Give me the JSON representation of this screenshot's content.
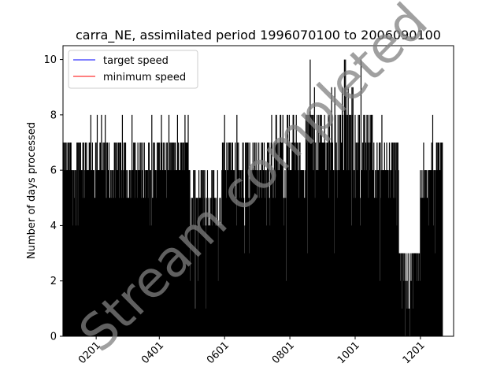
{
  "chart_data": {
    "type": "bar",
    "title": "carra_NE, assimilated period 1996070100 to 2006090100",
    "xlabel": "",
    "ylabel": "Number of days processed",
    "ylim": [
      0,
      10.5
    ],
    "y_ticks": [
      "0",
      "2",
      "4",
      "6",
      "8",
      "10"
    ],
    "x_ticks": [
      "0201",
      "0401",
      "0601",
      "0801",
      "1001",
      "1201"
    ],
    "x_range_days": [
      1,
      366
    ],
    "legend": {
      "placement": "top-left",
      "entries": [
        {
          "label": "target speed",
          "color": "#0000ff"
        },
        {
          "label": "minimum speed",
          "color": "#ff0000"
        }
      ]
    },
    "grid": false,
    "bar_color": "#000000",
    "watermark": "Stream completed",
    "segments": [
      {
        "start_day": 1,
        "end_day": 30,
        "base": 6.3,
        "amp": 0.9,
        "min": 0,
        "max": 8
      },
      {
        "start_day": 30,
        "end_day": 90,
        "base": 6.0,
        "amp": 1.2,
        "min": 0,
        "max": 8
      },
      {
        "start_day": 90,
        "end_day": 120,
        "base": 6.3,
        "amp": 0.9,
        "min": 0,
        "max": 8
      },
      {
        "start_day": 120,
        "end_day": 150,
        "base": 5.0,
        "amp": 1.2,
        "min": 0,
        "max": 6
      },
      {
        "start_day": 150,
        "end_day": 200,
        "base": 6.2,
        "amp": 1.2,
        "min": 0,
        "max": 8
      },
      {
        "start_day": 200,
        "end_day": 230,
        "base": 6.5,
        "amp": 1.3,
        "min": 0,
        "max": 8
      },
      {
        "start_day": 230,
        "end_day": 280,
        "base": 7.0,
        "amp": 1.8,
        "min": 0,
        "max": 10
      },
      {
        "start_day": 280,
        "end_day": 300,
        "base": 6.5,
        "amp": 1.2,
        "min": 0,
        "max": 8
      },
      {
        "start_day": 300,
        "end_day": 315,
        "base": 6.0,
        "amp": 1.0,
        "min": 0,
        "max": 7
      },
      {
        "start_day": 315,
        "end_day": 335,
        "base": 2.5,
        "amp": 1.5,
        "min": 0,
        "max": 3
      },
      {
        "start_day": 335,
        "end_day": 345,
        "base": 5.5,
        "amp": 1.2,
        "min": 0,
        "max": 7
      },
      {
        "start_day": 345,
        "end_day": 350,
        "base": 6.5,
        "amp": 1.0,
        "min": 0,
        "max": 8
      },
      {
        "start_day": 350,
        "end_day": 356,
        "base": 6.5,
        "amp": 0.8,
        "min": 0,
        "max": 7
      },
      {
        "start_day": 356,
        "end_day": 366,
        "base": 0,
        "amp": 0,
        "min": 0,
        "max": 0
      }
    ],
    "target_speed": 0,
    "minimum_speed": 0
  }
}
